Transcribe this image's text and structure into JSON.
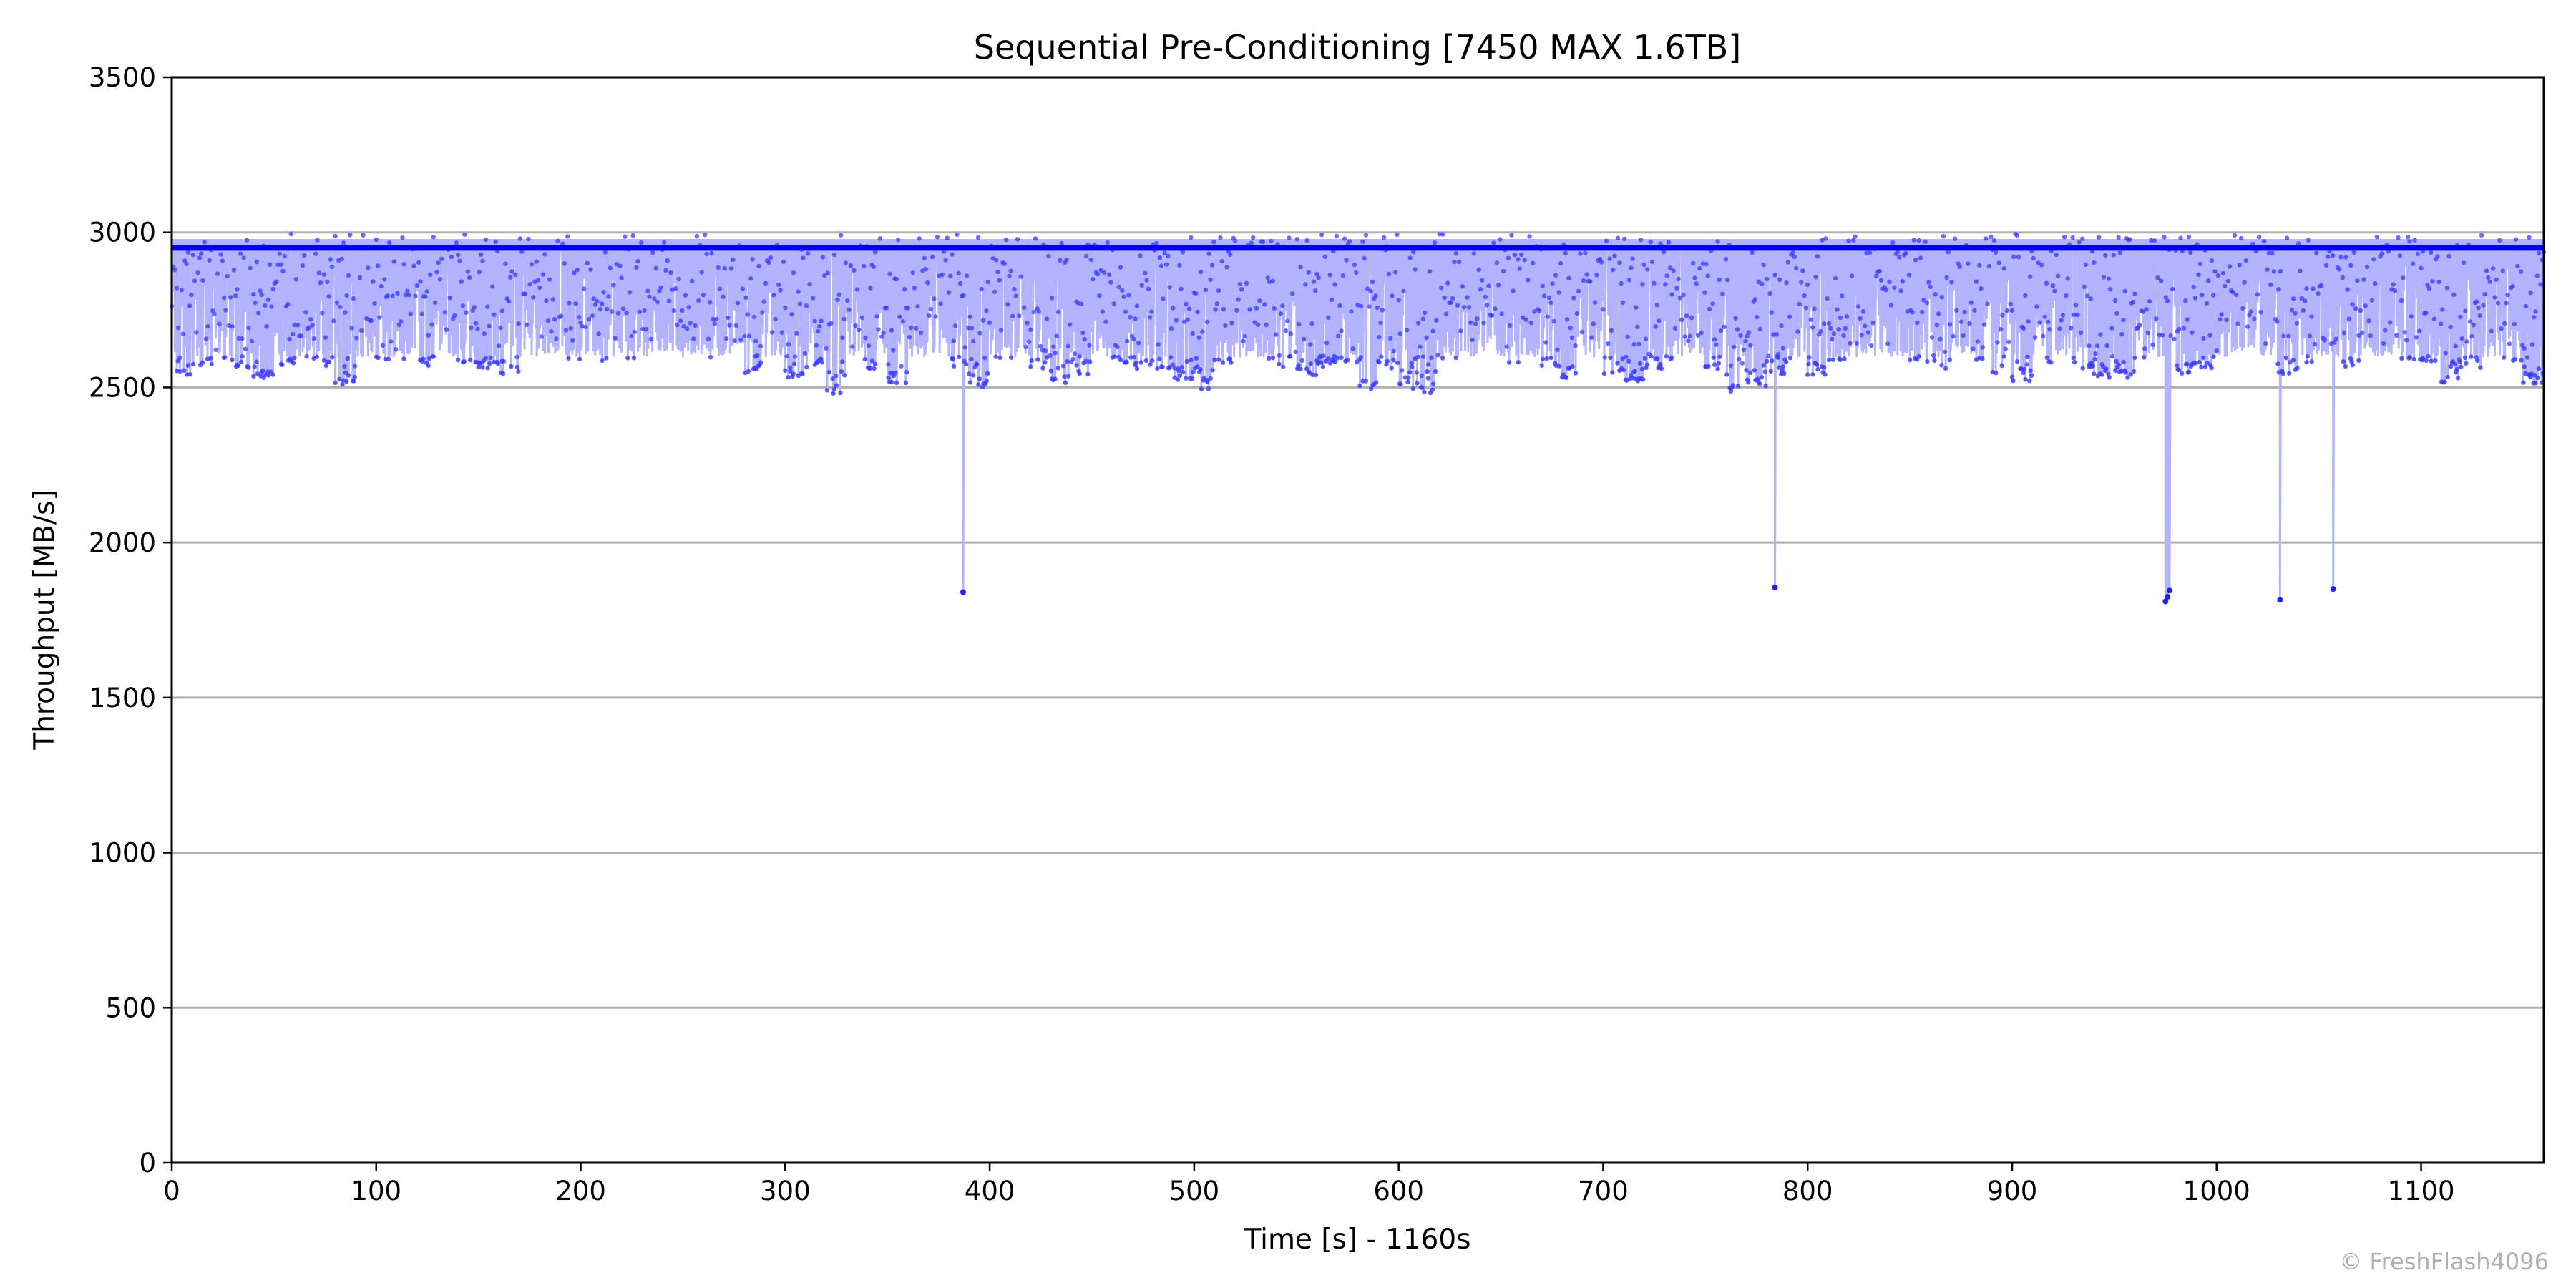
{
  "chart_data": {
    "type": "line",
    "title": "Sequential Pre-Conditioning [7450 MAX 1.6TB]",
    "xlabel": "Time [s] - 1160s",
    "ylabel": "Throughput [MB/s]",
    "xlim": [
      0,
      1160
    ],
    "ylim": [
      0,
      3500
    ],
    "xticks": [
      0,
      100,
      200,
      300,
      400,
      500,
      600,
      700,
      800,
      900,
      1000,
      1100
    ],
    "yticks": [
      0,
      500,
      1000,
      1500,
      2000,
      2500,
      3000,
      3500
    ],
    "grid": "horizontal",
    "legend": "none",
    "series_color": "#0000ff",
    "fill_color": "#b3b3ff",
    "grid_color": "#b0b0b0",
    "average_line": 2950,
    "band_upper": 2975,
    "low_envelope_step_s": 10,
    "low_envelope": [
      2520,
      2570,
      2580,
      2560,
      2530,
      2570,
      2590,
      2560,
      2510,
      2600,
      2580,
      2590,
      2570,
      2600,
      2580,
      2560,
      2540,
      2600,
      2610,
      2590,
      2600,
      2580,
      2590,
      2600,
      2610,
      2600,
      2590,
      2610,
      2530,
      2600,
      2520,
      2560,
      2480,
      2590,
      2560,
      2510,
      2600,
      2610,
      2560,
      2500,
      2580,
      2590,
      2560,
      2510,
      2540,
      2600,
      2580,
      2560,
      2560,
      2520,
      2490,
      2580,
      2600,
      2590,
      2560,
      2540,
      2560,
      2580,
      2490,
      2560,
      2490,
      2480,
      2590,
      2600,
      2610,
      2580,
      2600,
      2560,
      2530,
      2600,
      2540,
      2520,
      2560,
      2590,
      2600,
      2560,
      2470,
      2500,
      2540,
      2590,
      2540,
      2580,
      2600,
      2590,
      2600,
      2580,
      2560,
      2590,
      2580,
      2540,
      2520,
      2580,
      2600,
      2560,
      2530,
      2530,
      2580,
      2600,
      2540,
      2560,
      2600,
      2620,
      2600,
      2540,
      2580,
      2600,
      2560,
      2600,
      2600,
      2590,
      2580,
      2510,
      2560,
      2600,
      2580,
      2510,
      2580,
      2590
    ],
    "dips": [
      {
        "t": 387,
        "value": 1840
      },
      {
        "t": 784,
        "value": 1855
      },
      {
        "t": 975,
        "value": 1810
      },
      {
        "t": 976,
        "value": 1825
      },
      {
        "t": 977,
        "value": 1845
      },
      {
        "t": 1031,
        "value": 1815
      },
      {
        "t": 1057,
        "value": 1850
      }
    ]
  },
  "watermark": "© FreshFlash4096"
}
